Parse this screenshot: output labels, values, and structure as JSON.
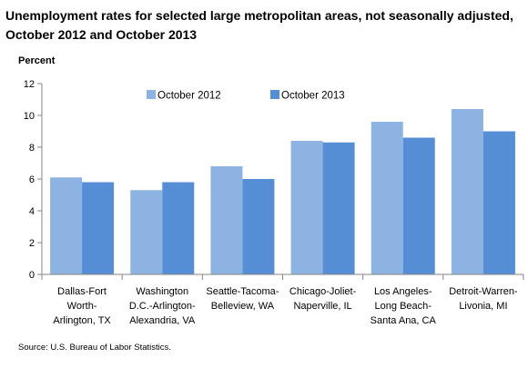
{
  "chart_data": {
    "type": "bar",
    "title": "Unemployment rates for selected large metropolitan areas, not seasonally adjusted, October 2012 and October 2013",
    "ylabel": "Percent",
    "xlabel": "",
    "ylim": [
      0,
      12
    ],
    "yticks": [
      "0",
      "2",
      "4",
      "6",
      "8",
      "10",
      "12"
    ],
    "categories": [
      [
        "Dallas-Fort",
        "Worth-",
        "Arlington, TX"
      ],
      [
        "Washington",
        "D.C.-Arlington-",
        "Alexandria, VA"
      ],
      [
        "Seattle-Tacoma-",
        "Belleview, WA"
      ],
      [
        "Chicago-Joliet-",
        "Naperville, IL"
      ],
      [
        "Los Angeles-",
        "Long Beach-",
        "Santa Ana, CA"
      ],
      [
        "Detroit-Warren-",
        "Livonia, MI"
      ]
    ],
    "series": [
      {
        "name": "October 2012",
        "color": "#8db3e2",
        "values": [
          6.1,
          5.3,
          6.8,
          8.4,
          9.6,
          10.4
        ]
      },
      {
        "name": "October 2013",
        "color": "#558ed5",
        "values": [
          5.8,
          5.8,
          6.0,
          8.3,
          8.6,
          9.0
        ]
      }
    ],
    "grid": false,
    "legend": "top",
    "source": "Source: U.S. Bureau of Labor Statistics."
  }
}
